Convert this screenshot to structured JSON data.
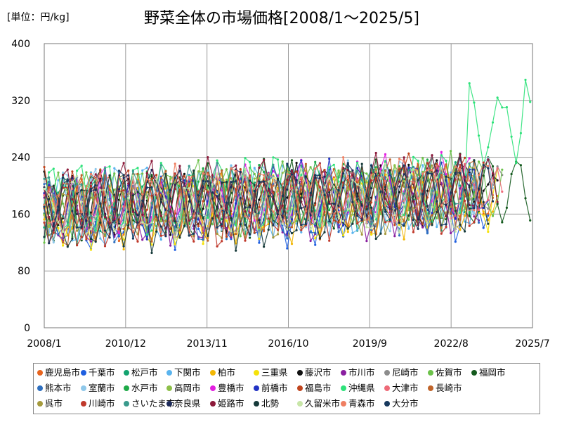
{
  "chart_data": {
    "type": "line",
    "title": "野菜全体の市場価格[2008/1～2025/5]",
    "unit_label": "[単位：円/kg]",
    "x_tick_labels": [
      "2008/1",
      "2010/12",
      "2013/11",
      "2016/10",
      "2019/9",
      "2022/8",
      "2025/7"
    ],
    "y_ticks": [
      0,
      80,
      160,
      240,
      320,
      400
    ],
    "ylim": [
      0,
      400
    ],
    "xlim": [
      "2008/1",
      "2025/7"
    ],
    "grid": true,
    "legend_position": "bottom",
    "series": [
      {
        "name": "鹿児島市",
        "color": "#e8641e"
      },
      {
        "name": "千葉市",
        "color": "#1f5fe0"
      },
      {
        "name": "松戸市",
        "color": "#13a36f"
      },
      {
        "name": "下関市",
        "color": "#5ab4ee"
      },
      {
        "name": "柏市",
        "color": "#f2b705"
      },
      {
        "name": "三重県",
        "color": "#f5e20a"
      },
      {
        "name": "藤沢市",
        "color": "#111111"
      },
      {
        "name": "市川市",
        "color": "#8a1fa0"
      },
      {
        "name": "尼崎市",
        "color": "#8c8c8c"
      },
      {
        "name": "佐賀市",
        "color": "#6cc24a"
      },
      {
        "name": "福岡市",
        "color": "#145a1e"
      },
      {
        "name": "熊本市",
        "color": "#2e6fbf"
      },
      {
        "name": "室蘭市",
        "color": "#8fc8ea"
      },
      {
        "name": "水戸市",
        "color": "#1faa48"
      },
      {
        "name": "高岡市",
        "color": "#8dbf48"
      },
      {
        "name": "豊橋市",
        "color": "#e21fe0"
      },
      {
        "name": "前橋市",
        "color": "#2233c4"
      },
      {
        "name": "福島市",
        "color": "#c0451e"
      },
      {
        "name": "沖縄県",
        "color": "#2ee27a"
      },
      {
        "name": "大津市",
        "color": "#ee6a78"
      },
      {
        "name": "長崎市",
        "color": "#c0642a"
      },
      {
        "name": "呉市",
        "color": "#a59a3c"
      },
      {
        "name": "川崎市",
        "color": "#c0392b"
      },
      {
        "name": "さいたま市",
        "color": "#3a9a8c"
      },
      {
        "name": "奈良県",
        "color": "#1c2a5a"
      },
      {
        "name": "姫路市",
        "color": "#8c1a3a"
      },
      {
        "name": "北勢",
        "color": "#163a3a"
      },
      {
        "name": "久留米市",
        "color": "#c8e6a8"
      },
      {
        "name": "青森市",
        "color": "#ef7f62"
      },
      {
        "name": "大分市",
        "color": "#17395e"
      }
    ]
  }
}
